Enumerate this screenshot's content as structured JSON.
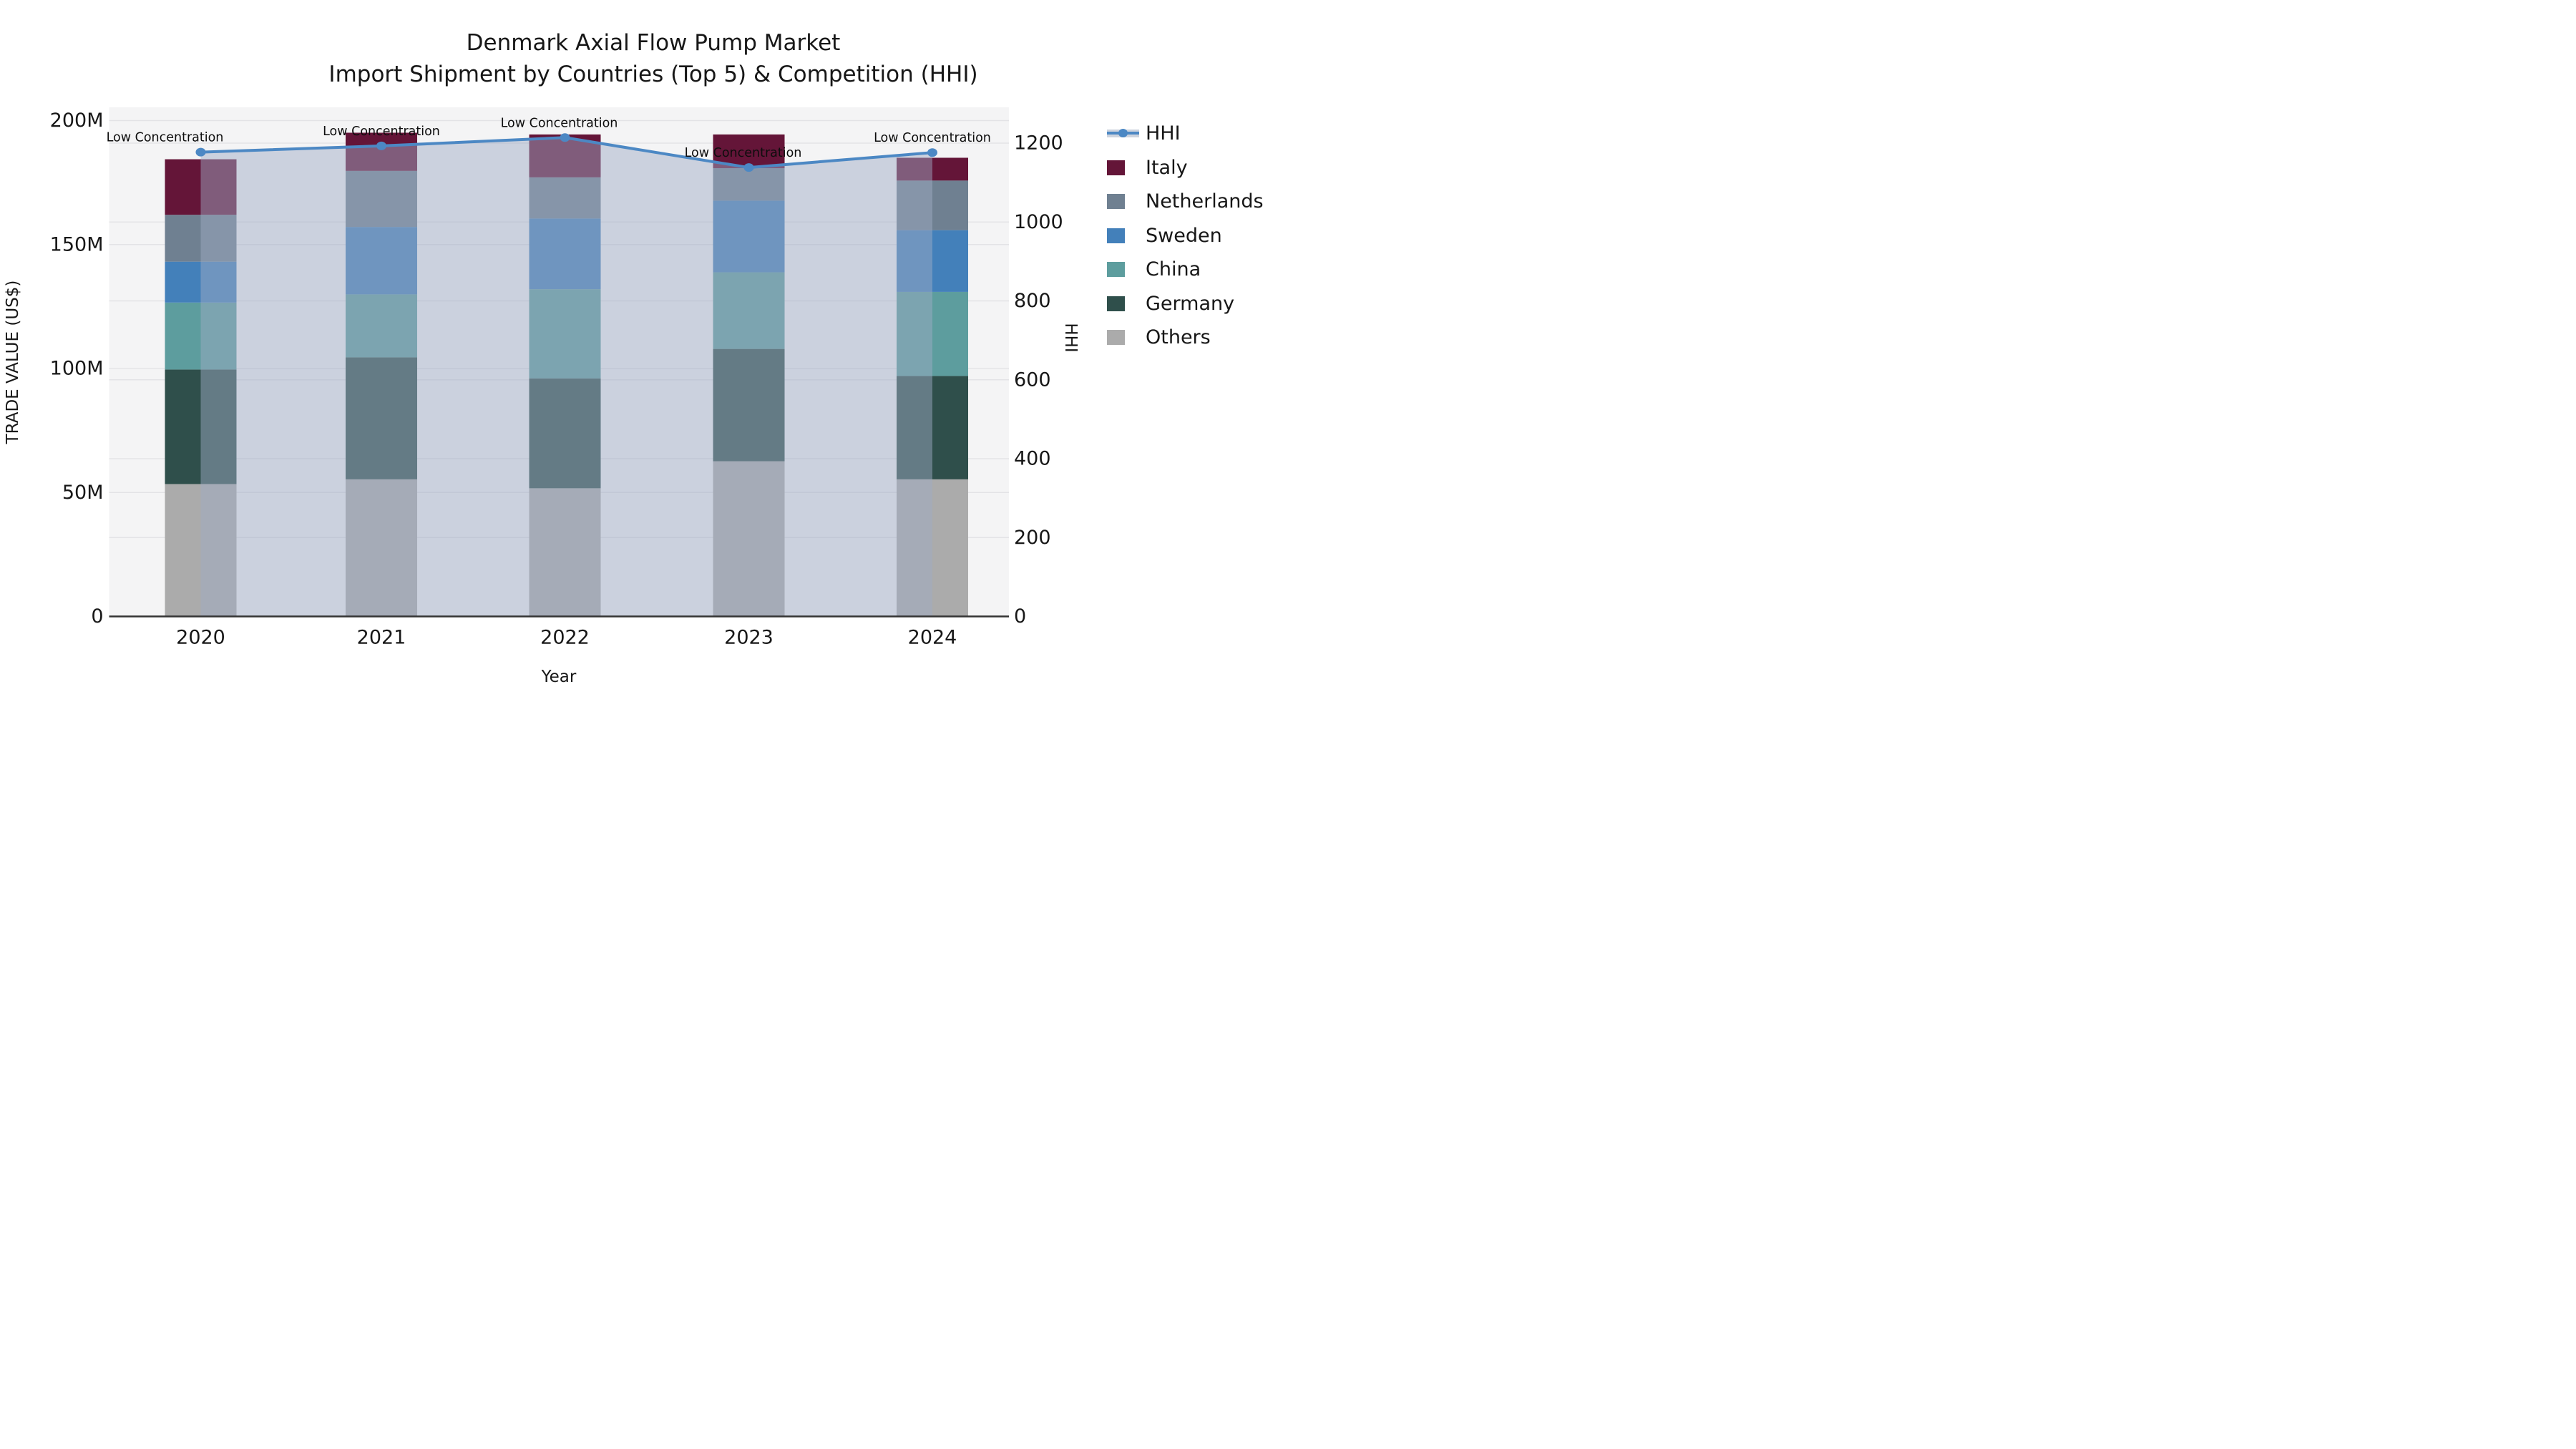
{
  "title": {
    "line1": "Denmark Axial Flow Pump Market",
    "line2": "Import Shipment by Countries (Top 5) & Competition (HHI)"
  },
  "chart_data": {
    "type": "bar",
    "subtype": "stacked-bars-with-line-and-area-overlay",
    "title": "Denmark Axial Flow Pump Market — Import Shipment by Countries (Top 5) & Competition (HHI)",
    "categories": [
      "2020",
      "2021",
      "2022",
      "2023",
      "2024"
    ],
    "xlabel": "Year",
    "ylabel_left": "TRADE VALUE (US$)",
    "ylabel_right": "HHI",
    "value_units": "million US$",
    "stack_order_bottom_to_top": [
      "Others",
      "Germany",
      "China",
      "Sweden",
      "Netherlands",
      "Italy"
    ],
    "series": [
      {
        "name": "Italy",
        "color": "#641538",
        "values": [
          22.4,
          15.4,
          17.3,
          13.6,
          9.2
        ]
      },
      {
        "name": "Netherlands",
        "color": "#6F8091",
        "values": [
          18.9,
          22.6,
          16.6,
          13.1,
          20.0
        ]
      },
      {
        "name": "Sweden",
        "color": "#4380BA",
        "values": [
          16.5,
          27.2,
          28.5,
          28.9,
          24.9
        ]
      },
      {
        "name": "China",
        "color": "#5D9D9E",
        "values": [
          27.0,
          25.4,
          36.0,
          30.9,
          33.9
        ]
      },
      {
        "name": "Germany",
        "color": "#2F4F4B",
        "values": [
          46.2,
          49.2,
          44.3,
          45.3,
          41.7
        ]
      },
      {
        "name": "Others",
        "color": "#ABABAB",
        "values": [
          53.4,
          55.3,
          51.7,
          62.6,
          55.3
        ]
      }
    ],
    "bar_totals": [
      184.4,
      195.1,
      194.4,
      194.4,
      185.0
    ],
    "hhi_line": {
      "name": "HHI",
      "values": [
        1177,
        1193,
        1214,
        1138,
        1176
      ],
      "color": "#4C88C4",
      "area_fill": "rgba(158,172,196,0.48)"
    },
    "annotations": {
      "text": "Low Concentration",
      "applies_to": [
        "2020",
        "2021",
        "2022",
        "2023",
        "2024"
      ]
    },
    "left_axis": {
      "label": "TRADE VALUE (US$)",
      "range": [
        0,
        205
      ],
      "ticks": [
        {
          "label": "0",
          "value": 0
        },
        {
          "label": "50M",
          "value": 50
        },
        {
          "label": "100M",
          "value": 100
        },
        {
          "label": "150M",
          "value": 150
        },
        {
          "label": "200M",
          "value": 200
        }
      ]
    },
    "right_axis": {
      "label": "HHI",
      "range": [
        0,
        1290
      ],
      "ticks": [
        {
          "label": "0",
          "value": 0
        },
        {
          "label": "200",
          "value": 200
        },
        {
          "label": "400",
          "value": 400
        },
        {
          "label": "600",
          "value": 600
        },
        {
          "label": "800",
          "value": 800
        },
        {
          "label": "1000",
          "value": 1000
        },
        {
          "label": "1200",
          "value": 1200
        }
      ]
    },
    "legend": {
      "position": "right",
      "entries": [
        "HHI",
        "Italy",
        "Netherlands",
        "Sweden",
        "China",
        "Germany",
        "Others"
      ]
    },
    "grid": true,
    "plot_background": "#F4F4F5",
    "gridline_color": "#E3E3E6",
    "axis_line_color": "#333333",
    "text_color": "#171717"
  }
}
